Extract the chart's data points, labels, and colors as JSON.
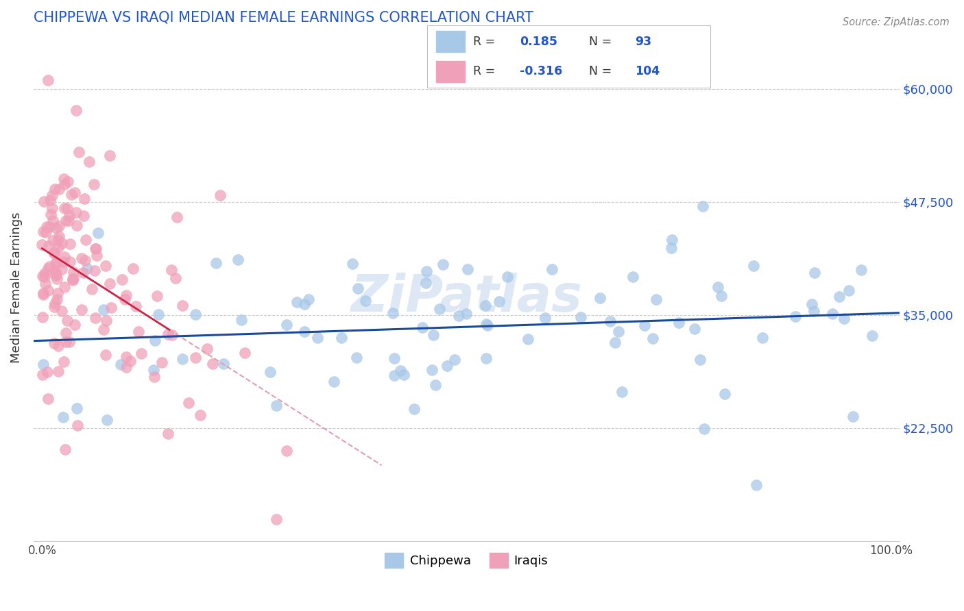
{
  "title": "CHIPPEWA VS IRAQI MEDIAN FEMALE EARNINGS CORRELATION CHART",
  "source_text": "Source: ZipAtlas.com",
  "ylabel": "Median Female Earnings",
  "yticks": [
    22500,
    35000,
    47500,
    60000
  ],
  "ytick_labels": [
    "$22,500",
    "$35,000",
    "$47,500",
    "$60,000"
  ],
  "xtick_labels": [
    "0.0%",
    "100.0%"
  ],
  "chippewa_color": "#a8c8e8",
  "iraqi_color": "#f0a0b8",
  "chippewa_line_color": "#1a4a9a",
  "iraqi_line_color": "#cc2244",
  "iraqi_dash_color": "#e0a0b0",
  "axis_color": "#2255cc",
  "watermark": "ZiPatlas",
  "background_color": "#ffffff",
  "ylim_low": 10000,
  "ylim_high": 66000,
  "xlim_low": -1,
  "xlim_high": 101
}
